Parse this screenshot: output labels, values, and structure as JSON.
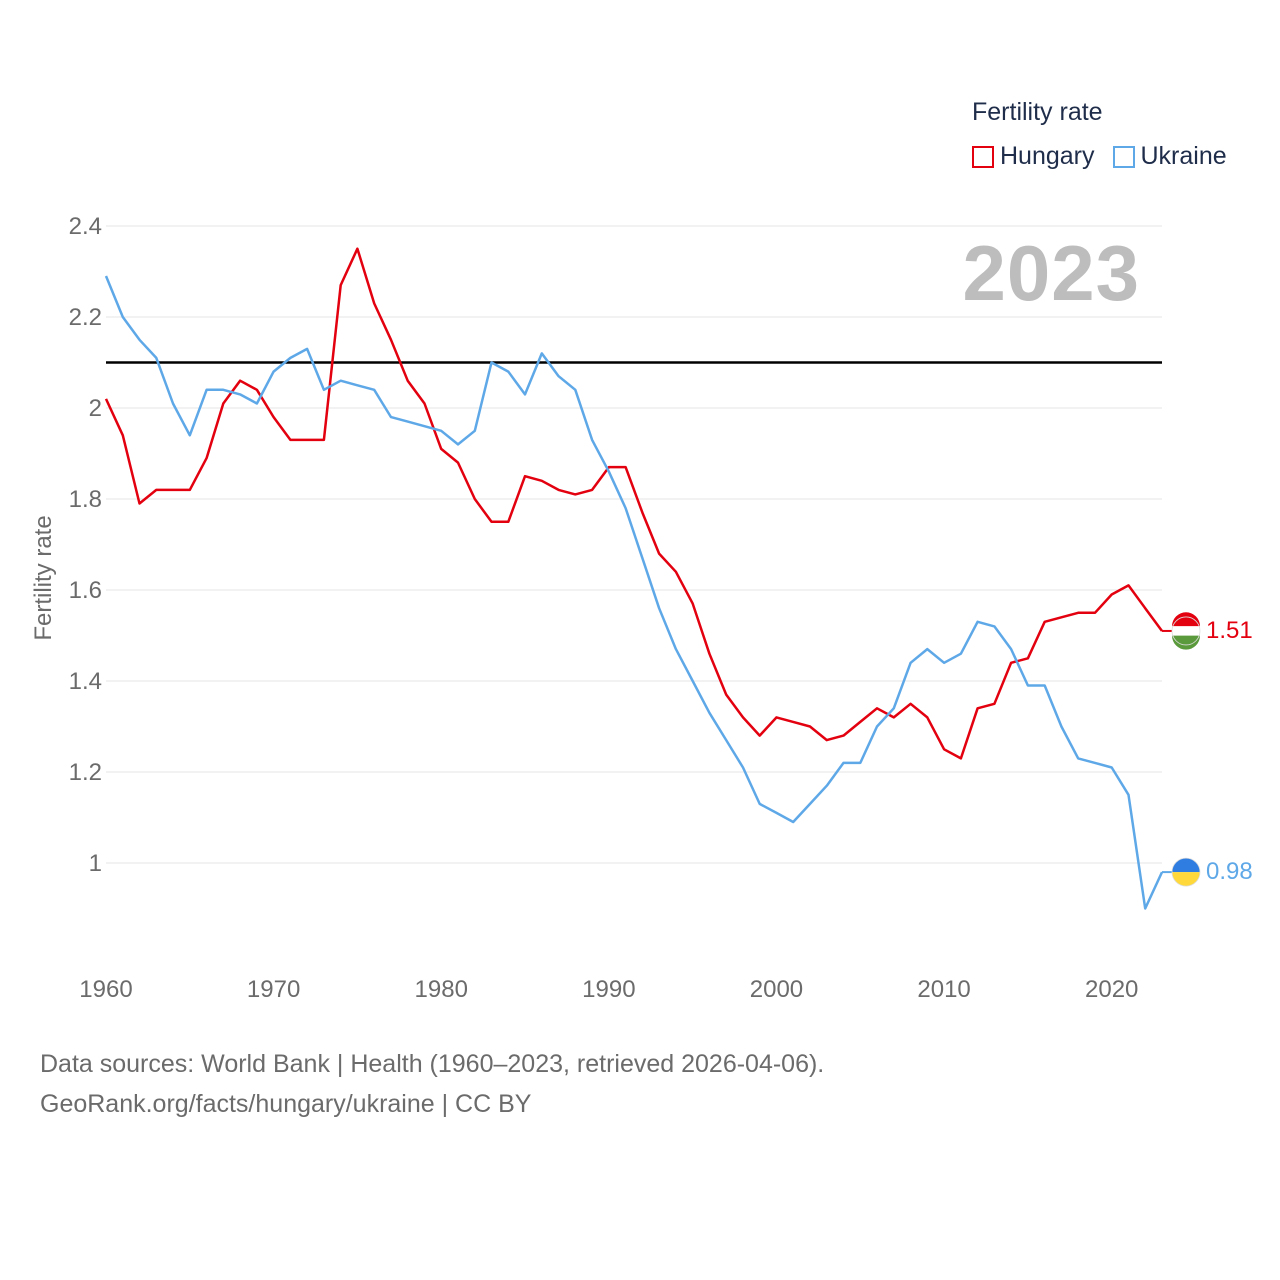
{
  "chart_data": {
    "type": "line",
    "title": "",
    "ylabel": "Fertility rate",
    "xlabel": "",
    "xlim": [
      1960,
      2023
    ],
    "ylim": [
      0.8,
      2.45
    ],
    "xticks": [
      1960,
      1970,
      1980,
      1990,
      2000,
      2010,
      2020
    ],
    "yticks": [
      1,
      1.2,
      1.4,
      1.6,
      1.8,
      2,
      2.2,
      2.4
    ],
    "ytick_labels": [
      "1",
      "1.2",
      "1.4",
      "1.6",
      "1.8",
      "2",
      "2.2",
      "2.4"
    ],
    "reference_line": 2.1,
    "current_year": "2023",
    "legend_title": "Fertility rate",
    "x": [
      1960,
      1961,
      1962,
      1963,
      1964,
      1965,
      1966,
      1967,
      1968,
      1969,
      1970,
      1971,
      1972,
      1973,
      1974,
      1975,
      1976,
      1977,
      1978,
      1979,
      1980,
      1981,
      1982,
      1983,
      1984,
      1985,
      1986,
      1987,
      1988,
      1989,
      1990,
      1991,
      1992,
      1993,
      1994,
      1995,
      1996,
      1997,
      1998,
      1999,
      2000,
      2001,
      2002,
      2003,
      2004,
      2005,
      2006,
      2007,
      2008,
      2009,
      2010,
      2011,
      2012,
      2013,
      2014,
      2015,
      2016,
      2017,
      2018,
      2019,
      2020,
      2021,
      2022,
      2023
    ],
    "series": [
      {
        "name": "Hungary",
        "color": "#e3000f",
        "end_label": "1.51",
        "values": [
          2.02,
          1.94,
          1.79,
          1.82,
          1.82,
          1.82,
          1.89,
          2.01,
          2.06,
          2.04,
          1.98,
          1.93,
          1.93,
          1.93,
          2.27,
          2.35,
          2.23,
          2.15,
          2.06,
          2.01,
          1.91,
          1.88,
          1.8,
          1.75,
          1.75,
          1.85,
          1.84,
          1.82,
          1.81,
          1.82,
          1.87,
          1.87,
          1.77,
          1.68,
          1.64,
          1.57,
          1.46,
          1.37,
          1.32,
          1.28,
          1.32,
          1.31,
          1.3,
          1.27,
          1.28,
          1.31,
          1.34,
          1.32,
          1.35,
          1.32,
          1.25,
          1.23,
          1.34,
          1.35,
          1.44,
          1.45,
          1.53,
          1.54,
          1.55,
          1.55,
          1.59,
          1.61,
          1.56,
          1.51
        ]
      },
      {
        "name": "Ukraine",
        "color": "#5ea8e8",
        "end_label": "0.98",
        "values": [
          2.29,
          2.2,
          2.15,
          2.11,
          2.01,
          1.94,
          2.04,
          2.04,
          2.03,
          2.01,
          2.08,
          2.11,
          2.13,
          2.04,
          2.06,
          2.05,
          2.04,
          1.98,
          1.97,
          1.96,
          1.95,
          1.92,
          1.95,
          2.1,
          2.08,
          2.03,
          2.12,
          2.07,
          2.04,
          1.93,
          1.86,
          1.78,
          1.67,
          1.56,
          1.47,
          1.4,
          1.33,
          1.27,
          1.21,
          1.13,
          1.11,
          1.09,
          1.13,
          1.17,
          1.22,
          1.22,
          1.3,
          1.34,
          1.44,
          1.47,
          1.44,
          1.46,
          1.53,
          1.52,
          1.47,
          1.39,
          1.39,
          1.3,
          1.23,
          1.22,
          1.21,
          1.15,
          0.9,
          0.98
        ]
      }
    ]
  },
  "footer": {
    "line1": "Data sources: World Bank | Health (1960–2023, retrieved 2026-04-06).",
    "line2": "GeoRank.org/facts/hungary/ukraine | CC BY"
  }
}
